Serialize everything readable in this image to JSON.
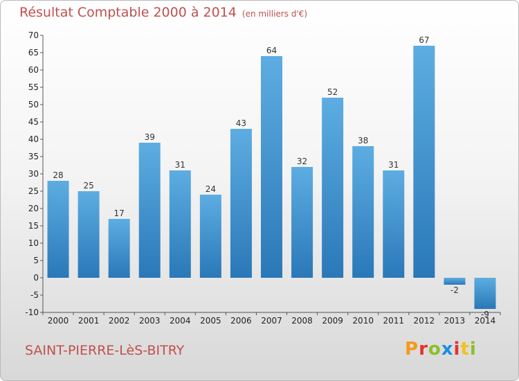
{
  "header": {
    "title": "Résultat Comptable 2000 à 2014",
    "subtitle": "(en milliers d'€)"
  },
  "footer": {
    "commune": "SAINT-PIERRE-LèS-BITRY",
    "logo_text": "Proxiti",
    "logo_letter_colors": [
      "#f39a1b",
      "#e5322c",
      "#8cbf26",
      "#1d8fe1",
      "#e5322c",
      "#f2c21b",
      "#8cbf26"
    ]
  },
  "chart_data": {
    "type": "bar",
    "title": "Résultat Comptable 2000 à 2014",
    "subtitle": "(en milliers d'€)",
    "categories": [
      "2000",
      "2001",
      "2002",
      "2003",
      "2004",
      "2005",
      "2006",
      "2007",
      "2008",
      "2009",
      "2010",
      "2011",
      "2012",
      "2013",
      "2014"
    ],
    "values": [
      28,
      25,
      17,
      39,
      31,
      24,
      43,
      64,
      32,
      52,
      38,
      31,
      67,
      -2,
      -9
    ],
    "data_labels": [
      "28",
      "25",
      "17",
      "39",
      "31",
      "24",
      "43",
      "64",
      "32",
      "52",
      "38",
      "31",
      "67",
      "-2",
      "-9"
    ],
    "ylim": [
      -10,
      70
    ],
    "yticks": [
      -10,
      -5,
      0,
      5,
      10,
      15,
      20,
      25,
      30,
      35,
      40,
      45,
      50,
      55,
      60,
      65,
      70
    ],
    "grid": false,
    "colors": {
      "bar_light": "#5dade2",
      "bar_dark": "#2a78b8",
      "axis": "#555555",
      "text": "#222222"
    }
  }
}
